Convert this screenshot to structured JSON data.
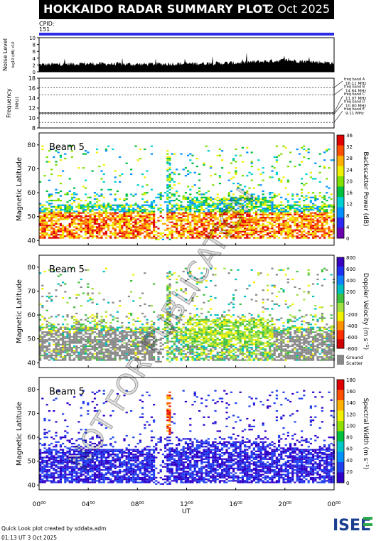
{
  "header": {
    "title": "HOKKAIDO RADAR SUMMARY PLOT",
    "date": "2 Oct 2025"
  },
  "cpid": {
    "label": "CPID:",
    "value": "151"
  },
  "noise_panel": {
    "ylabel": "Noise Level",
    "yunit": "log10 (dB) x10",
    "yticks": [
      "0",
      "2",
      "4",
      "6",
      "8",
      "10"
    ]
  },
  "freq_panel": {
    "ylabel": "Frequency",
    "yunit": "(MHz)",
    "yticks": [
      "8",
      "10",
      "12",
      "14",
      "16",
      "18"
    ],
    "bands": [
      {
        "label": "freq band A",
        "value": "16.11 MHz"
      },
      {
        "label": "freq band B",
        "value": "14.64 MHz"
      },
      {
        "label": "freq band C",
        "value": "11.07 MHz"
      },
      {
        "label": "freq band D",
        "value": "10.80 MHz"
      },
      {
        "label": "freq band E",
        "value": "9.11 MHz"
      }
    ]
  },
  "beam_label": "Beam  5",
  "lat_label": "Magnetic Latitude",
  "lat_ticks": [
    "40",
    "50",
    "60",
    "70",
    "80"
  ],
  "power_scale": {
    "label": "Backscatter Power (dB)",
    "ticks": [
      "0",
      "4",
      "8",
      "12",
      "16",
      "20",
      "24",
      "28",
      "32",
      "36"
    ]
  },
  "velocity_scale": {
    "label": "Doppler Velocity (m s⁻¹)",
    "ticks": [
      "800",
      "600",
      "400",
      "200",
      "0",
      "-200",
      "-400",
      "-600",
      "-800"
    ],
    "ground_label": "Ground",
    "scatter_label": "Scatter"
  },
  "width_scale": {
    "label": "Spectral Width (m s⁻¹)",
    "ticks": [
      "0",
      "20",
      "40",
      "60",
      "80",
      "100",
      "120",
      "140",
      "160",
      "180"
    ]
  },
  "xaxis": {
    "label": "UT",
    "ticks": [
      "00⁰⁰",
      "04⁰⁰",
      "08⁰⁰",
      "12⁰⁰",
      "16⁰⁰",
      "20⁰⁰",
      "00⁰⁰"
    ]
  },
  "watermark": "NOT FOR PUBLICATION",
  "footer": {
    "line1": "Quick Look plot created by sddata.adm",
    "line2": "01:13 UT  3 Oct 2025"
  },
  "logo_text": "ISEE",
  "colors": {
    "ground_scatter": "#888888",
    "cpid_bar": "#2b2be8"
  },
  "chart_data": [
    {
      "type": "area",
      "title": "Noise Level",
      "ylabel": "Noise Level",
      "ylim": [
        0,
        10
      ],
      "x": [
        0,
        4,
        8,
        12,
        16,
        20,
        24
      ],
      "values": [
        1.5,
        1.8,
        1.6,
        1.8,
        2.0,
        2.8,
        2.0
      ]
    },
    {
      "type": "line",
      "ylabel": "Frequency",
      "ylim": [
        8,
        18
      ],
      "series": [
        {
          "name": "freq band A",
          "values": [
            16.11
          ]
        },
        {
          "name": "freq band B",
          "values": [
            14.64
          ]
        },
        {
          "name": "freq band C",
          "values": [
            11.07
          ]
        },
        {
          "name": "freq band D",
          "values": [
            10.8
          ]
        },
        {
          "name": "freq band E",
          "values": [
            9.11
          ]
        }
      ]
    },
    {
      "type": "heatmap",
      "ylabel": "Magnetic Latitude",
      "xlabel": "UT",
      "ylim": [
        38,
        85
      ],
      "colorbar_label": "Backscatter Power (dB)",
      "clim": [
        0,
        36
      ]
    },
    {
      "type": "heatmap",
      "ylabel": "Magnetic Latitude",
      "xlabel": "UT",
      "ylim": [
        38,
        85
      ],
      "colorbar_label": "Doppler Velocity (m s⁻¹)",
      "clim": [
        -800,
        800
      ]
    },
    {
      "type": "heatmap",
      "ylabel": "Magnetic Latitude",
      "xlabel": "UT",
      "ylim": [
        38,
        85
      ],
      "colorbar_label": "Spectral Width (m s⁻¹)",
      "clim": [
        0,
        180
      ]
    }
  ]
}
